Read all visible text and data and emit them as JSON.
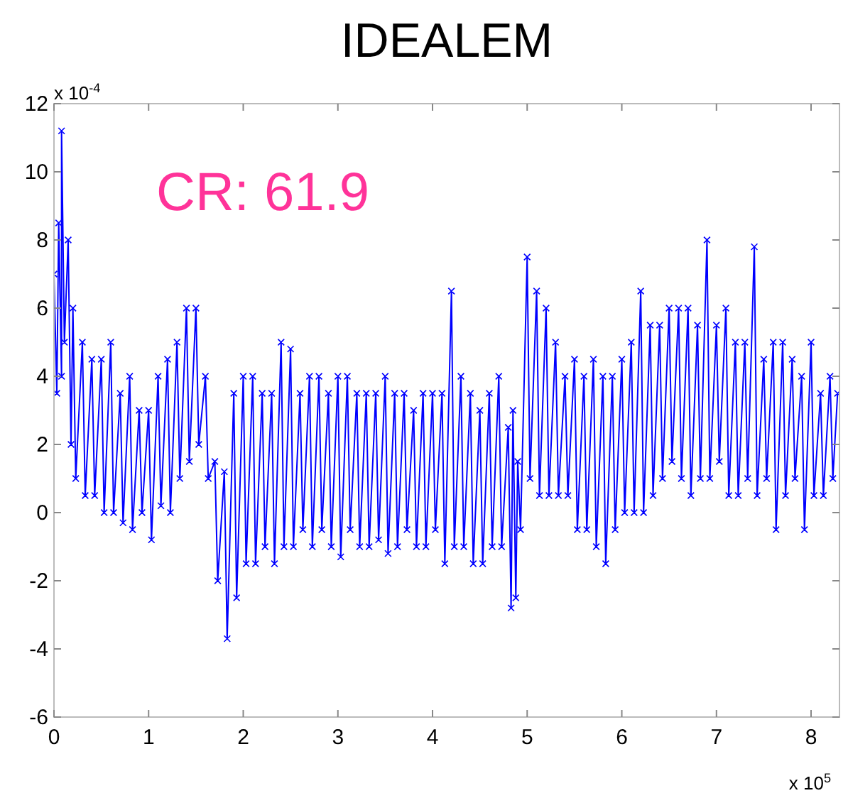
{
  "chart_data": {
    "type": "line",
    "title": "IDEALEM",
    "marker": "cross",
    "grid": false,
    "annotations": [
      "CR: 61.9",
      "x 10$^{-4}$",
      "x 10$^{5}$"
    ],
    "xlim": [
      0,
      8.3
    ],
    "xticks": [
      0,
      1,
      2,
      3,
      4,
      5,
      6,
      7,
      8
    ],
    "ylim": [
      -6,
      12
    ],
    "yticks": [
      -6,
      -4,
      -2,
      0,
      2,
      4,
      6,
      8,
      10,
      12
    ],
    "series": [
      {
        "color": "#0000ff",
        "x": [
          0,
          0.03,
          0.05,
          0.08,
          0.08,
          0.11,
          0.15,
          0.18,
          0.2,
          0.23,
          0.3,
          0.33,
          0.4,
          0.43,
          0.5,
          0.53,
          0.6,
          0.63,
          0.7,
          0.73,
          0.8,
          0.83,
          0.9,
          0.93,
          1,
          1.03,
          1.1,
          1.13,
          1.2,
          1.23,
          1.3,
          1.33,
          1.4,
          1.43,
          1.5,
          1.53,
          1.6,
          1.63,
          1.7,
          1.73,
          1.8,
          1.83,
          1.9,
          1.93,
          2,
          2.03,
          2.1,
          2.13,
          2.2,
          2.23,
          2.3,
          2.33,
          2.4,
          2.43,
          2.5,
          2.53,
          2.6,
          2.63,
          2.7,
          2.73,
          2.8,
          2.83,
          2.9,
          2.93,
          3,
          3.03,
          3.1,
          3.13,
          3.2,
          3.23,
          3.3,
          3.33,
          3.4,
          3.43,
          3.5,
          3.53,
          3.6,
          3.63,
          3.7,
          3.73,
          3.8,
          3.83,
          3.9,
          3.93,
          4,
          4.03,
          4.1,
          4.13,
          4.2,
          4.23,
          4.3,
          4.33,
          4.4,
          4.43,
          4.5,
          4.53,
          4.6,
          4.63,
          4.7,
          4.73,
          4.8,
          4.83,
          4.85,
          4.88,
          4.9,
          4.93,
          5,
          5.03,
          5.1,
          5.13,
          5.2,
          5.23,
          5.3,
          5.33,
          5.4,
          5.43,
          5.5,
          5.53,
          5.6,
          5.63,
          5.7,
          5.73,
          5.8,
          5.83,
          5.9,
          5.93,
          6,
          6.03,
          6.1,
          6.13,
          6.2,
          6.23,
          6.3,
          6.33,
          6.4,
          6.43,
          6.5,
          6.53,
          6.6,
          6.63,
          6.7,
          6.73,
          6.8,
          6.83,
          6.9,
          6.93,
          7,
          7.03,
          7.1,
          7.13,
          7.2,
          7.23,
          7.3,
          7.33,
          7.4,
          7.43,
          7.5,
          7.53,
          7.6,
          7.63,
          7.7,
          7.73,
          7.8,
          7.83,
          7.9,
          7.93,
          8,
          8.03,
          8.1,
          8.13,
          8.2,
          8.23,
          8.28
        ],
        "values": [
          7,
          3.5,
          8.5,
          4,
          11.2,
          5,
          8,
          2,
          6,
          1,
          5,
          0.5,
          4.5,
          0.5,
          4.5,
          0,
          5,
          0,
          3.5,
          -0.3,
          4,
          -0.5,
          3,
          0,
          3,
          -0.8,
          4,
          0.2,
          4.5,
          0,
          5,
          1,
          6,
          1.5,
          6,
          2,
          4,
          1,
          1.5,
          -2,
          1.2,
          -3.7,
          3.5,
          -2.5,
          4,
          -1.5,
          4,
          -1.5,
          3.5,
          -1,
          3.5,
          -1.5,
          5,
          -1,
          4.8,
          -1,
          3.5,
          -0.5,
          4,
          -1,
          4,
          -0.5,
          3.5,
          -1,
          4,
          -1.3,
          4,
          -0.5,
          3.5,
          -1,
          3.5,
          -1,
          3.5,
          -0.8,
          4,
          -1.2,
          3.5,
          -1,
          3.5,
          -0.5,
          3,
          -1,
          3.5,
          -1,
          3.5,
          -0.5,
          3.5,
          -1.5,
          6.5,
          -1,
          4,
          -1,
          3.5,
          -1.5,
          3,
          -1.5,
          3.5,
          -1,
          4,
          -1,
          2.5,
          -2.8,
          3,
          -2.5,
          1.5,
          -0.5,
          7.5,
          1,
          6.5,
          0.5,
          6,
          0.5,
          5,
          0.5,
          4,
          0.5,
          4.5,
          -0.5,
          4,
          -0.5,
          4.5,
          -1,
          4,
          -1.5,
          4,
          -0.5,
          4.5,
          0,
          5,
          0,
          6.5,
          0,
          5.5,
          0.5,
          5.5,
          1,
          6,
          1.5,
          6,
          1,
          6,
          0.5,
          5.5,
          1,
          8,
          1,
          5.5,
          1.5,
          6,
          0.5,
          5,
          0.5,
          5,
          1,
          7.8,
          0.5,
          4.5,
          1,
          5,
          -0.5,
          5,
          0.5,
          4.5,
          1,
          4,
          -0.5,
          5,
          0.5,
          3.5,
          0.5,
          4,
          1,
          3.5
        ]
      }
    ]
  }
}
